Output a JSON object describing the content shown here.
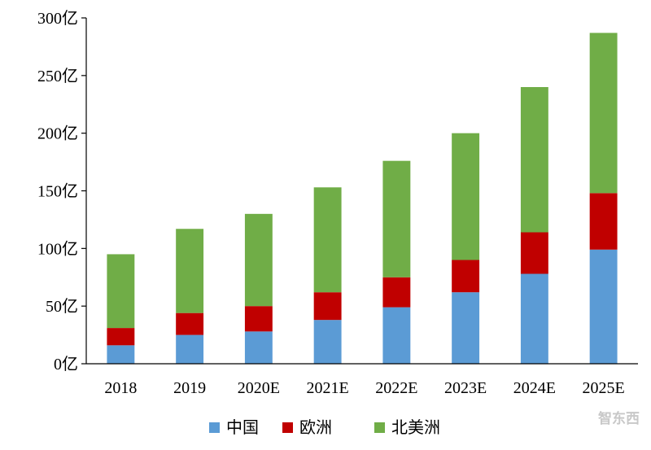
{
  "chart_data": {
    "type": "bar",
    "stacked": true,
    "categories": [
      "2018",
      "2019",
      "2020E",
      "2021E",
      "2022E",
      "2023E",
      "2024E",
      "2025E"
    ],
    "series": [
      {
        "name": "中国",
        "color": "#5b9bd5",
        "values": [
          16,
          25,
          28,
          38,
          49,
          62,
          78,
          99
        ]
      },
      {
        "name": "欧洲",
        "color": "#c00000",
        "values": [
          15,
          19,
          22,
          24,
          26,
          28,
          36,
          49
        ]
      },
      {
        "name": "北美洲",
        "color": "#70ad47",
        "values": [
          64,
          73,
          80,
          91,
          101,
          110,
          126,
          139
        ]
      }
    ],
    "ylim": [
      0,
      300
    ],
    "yticks": [
      0,
      50,
      100,
      150,
      200,
      250,
      300
    ],
    "ytick_labels": [
      "0亿",
      "50亿",
      "100亿",
      "150亿",
      "200亿",
      "250亿",
      "300亿"
    ],
    "title": "",
    "xlabel": "",
    "ylabel": "",
    "legend_position": "bottom",
    "grid": false
  },
  "watermark": {
    "text": "智东西"
  }
}
